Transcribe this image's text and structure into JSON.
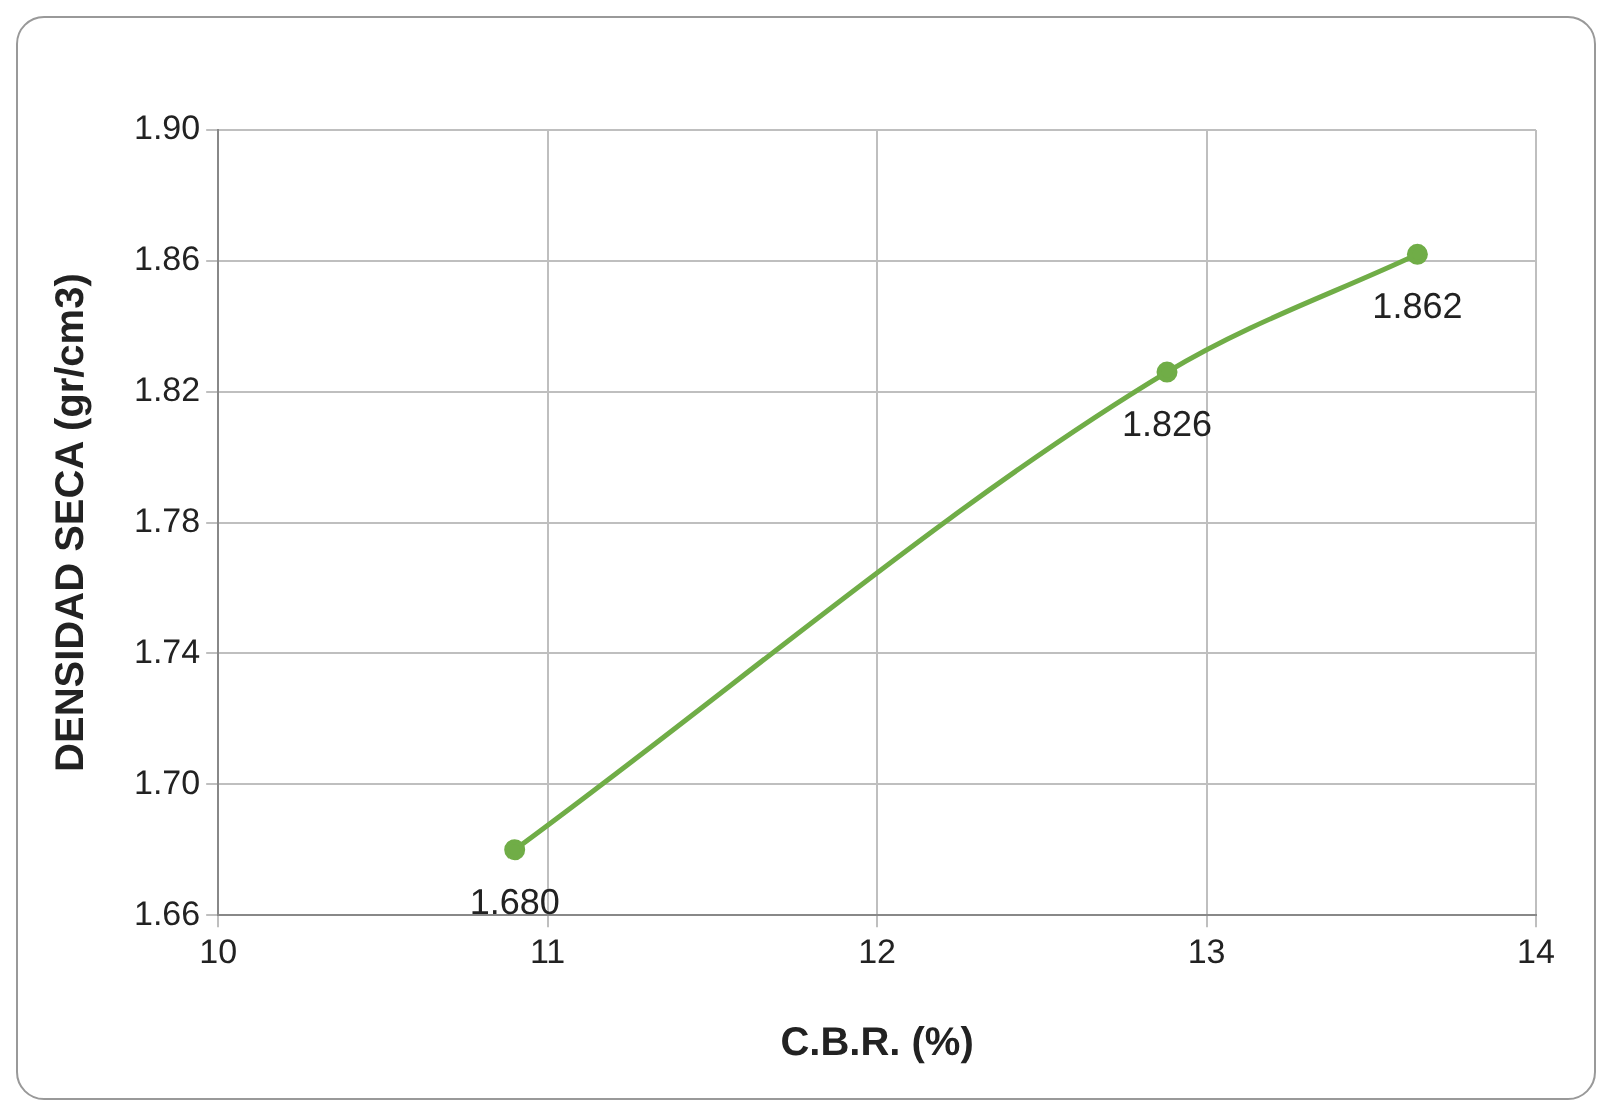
{
  "chart_data": {
    "type": "line",
    "xlabel": "C.B.R. (%)",
    "ylabel": "DENSIDAD SECA (gr/cm3)",
    "x": [
      10.9,
      12.88,
      13.64
    ],
    "series": [
      {
        "color": "#70ad47",
        "values": [
          1.68,
          1.826,
          1.862
        ],
        "value_labels": [
          "1.680",
          "1.826",
          "1.862"
        ]
      }
    ],
    "xlim": [
      10,
      14
    ],
    "xticks": [
      10,
      11,
      12,
      13,
      14
    ],
    "ylim": [
      1.66,
      1.9
    ],
    "yticks": [
      {
        "value": 1.66,
        "label": "1.66"
      },
      {
        "value": 1.7,
        "label": "1.70"
      },
      {
        "value": 1.74,
        "label": "1.74"
      },
      {
        "value": 1.78,
        "label": "1.78"
      },
      {
        "value": 1.82,
        "label": "1.82"
      },
      {
        "value": 1.86,
        "label": "1.86"
      },
      {
        "value": 1.9,
        "label": "1.90"
      }
    ],
    "grid": true,
    "legend": false,
    "marker": "circle",
    "line_style": "solid"
  }
}
